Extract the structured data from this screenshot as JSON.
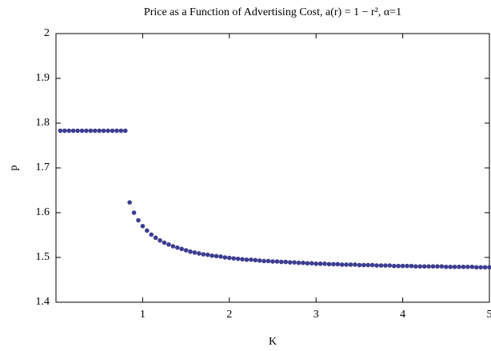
{
  "chart_data": {
    "type": "scatter",
    "title": "Price as a Function of Advertising Cost, a(r) = 1 − r², α=1",
    "x_label": "K",
    "y_label": "p",
    "xlim": [
      0,
      5
    ],
    "xticks": [
      1,
      2,
      3,
      4,
      5
    ],
    "ylim": [
      1.4,
      2
    ],
    "yticks": [
      1.4,
      1.5,
      1.6,
      1.7,
      1.8,
      1.9,
      2
    ],
    "color": "#3d3d91",
    "x": [
      0.05,
      0.1,
      0.15,
      0.2,
      0.25,
      0.3,
      0.35,
      0.4,
      0.45,
      0.5,
      0.55,
      0.6,
      0.65,
      0.7,
      0.75,
      0.8,
      0.85,
      0.9,
      0.95,
      1,
      1.05,
      1.1,
      1.15,
      1.2,
      1.25,
      1.3,
      1.35,
      1.4,
      1.45,
      1.5,
      1.55,
      1.6,
      1.65,
      1.7,
      1.75,
      1.8,
      1.85,
      1.9,
      1.95,
      2,
      2.05,
      2.1,
      2.15,
      2.2,
      2.25,
      2.3,
      2.35,
      2.4,
      2.45,
      2.5,
      2.55,
      2.6,
      2.65,
      2.7,
      2.75,
      2.8,
      2.85,
      2.9,
      2.95,
      3,
      3.05,
      3.1,
      3.15,
      3.2,
      3.25,
      3.3,
      3.35,
      3.4,
      3.45,
      3.5,
      3.55,
      3.6,
      3.65,
      3.7,
      3.75,
      3.8,
      3.85,
      3.9,
      3.95,
      4,
      4.05,
      4.1,
      4.15,
      4.2,
      4.25,
      4.3,
      4.35,
      4.4,
      4.45,
      4.5,
      4.55,
      4.6,
      4.65,
      4.7,
      4.75,
      4.8,
      4.85,
      4.9,
      4.95,
      5
    ],
    "values": [
      1.783,
      1.783,
      1.783,
      1.783,
      1.783,
      1.783,
      1.783,
      1.783,
      1.783,
      1.783,
      1.783,
      1.783,
      1.783,
      1.783,
      1.783,
      1.783,
      1.623,
      1.6,
      1.583,
      1.57,
      1.56,
      1.551,
      1.544,
      1.538,
      1.533,
      1.529,
      1.525,
      1.522,
      1.519,
      1.516,
      1.513,
      1.511,
      1.509,
      1.507,
      1.506,
      1.504,
      1.503,
      1.502,
      1.5,
      1.499,
      1.498,
      1.497,
      1.496,
      1.495,
      1.495,
      1.494,
      1.493,
      1.492,
      1.492,
      1.491,
      1.491,
      1.49,
      1.49,
      1.489,
      1.489,
      1.488,
      1.488,
      1.487,
      1.487,
      1.486,
      1.486,
      1.486,
      1.485,
      1.485,
      1.485,
      1.484,
      1.484,
      1.484,
      1.484,
      1.483,
      1.483,
      1.483,
      1.483,
      1.482,
      1.482,
      1.482,
      1.482,
      1.481,
      1.481,
      1.481,
      1.481,
      1.481,
      1.48,
      1.48,
      1.48,
      1.48,
      1.48,
      1.48,
      1.48,
      1.479,
      1.479,
      1.479,
      1.479,
      1.479,
      1.479,
      1.479,
      1.478,
      1.478,
      1.478,
      1.478
    ]
  }
}
